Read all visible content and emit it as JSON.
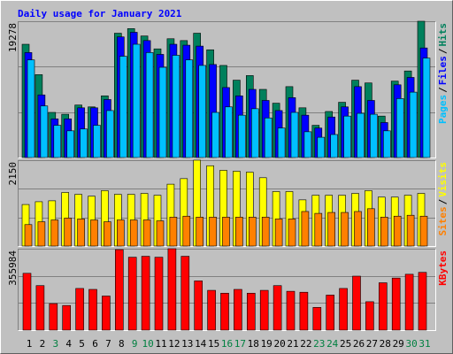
{
  "chart_data": [
    {
      "type": "bar",
      "title": "Daily usage for January 2021",
      "ylim": [
        0,
        19278
      ],
      "yticks": [
        19278
      ],
      "grid_values": [
        6426,
        12852
      ],
      "separator": "/",
      "series": [
        {
          "name": "Hits",
          "color": "#00805c",
          "values": [
            16021,
            11723,
            6383,
            6122,
            7425,
            7164,
            8727,
            17585,
            18236,
            17194,
            15370,
            16803,
            16543,
            17585,
            15240,
            13026,
            10942,
            11593,
            9639,
            7685,
            10030,
            7034,
            4559,
            6513,
            7816,
            10942,
            10551,
            5862,
            10811,
            12244,
            19278
          ]
        },
        {
          "name": "Files",
          "color": "#0000ff",
          "values": [
            14849,
            8858,
            5471,
            5471,
            7034,
            7034,
            8206,
            17064,
            17715,
            16543,
            14589,
            16021,
            15891,
            15761,
            13156,
            9900,
            8727,
            9639,
            8076,
            6643,
            8467,
            5992,
            4168,
            5731,
            7164,
            10030,
            8076,
            4950,
            10290,
            11332,
            15500
          ]
        },
        {
          "name": "Pages",
          "color": "#00c0ff",
          "values": [
            13807,
            7294,
            4559,
            3777,
            4038,
            4559,
            6643,
            14328,
            16021,
            14849,
            12765,
            14458,
            13807,
            13026,
            6383,
            7164,
            5992,
            6903,
            5601,
            4168,
            6383,
            3647,
            2866,
            3256,
            5862,
            6252,
            6122,
            3777,
            8336,
            9248,
            14068
          ]
        }
      ]
    },
    {
      "type": "bar",
      "ylim": [
        0,
        2150
      ],
      "yticks": [
        2150
      ],
      "grid_values": [
        717,
        1433
      ],
      "separator": "/",
      "series": [
        {
          "name": "Visits",
          "color": "#ffff00",
          "values": [
            1040,
            1110,
            1133,
            1341,
            1295,
            1248,
            1387,
            1295,
            1295,
            1318,
            1272,
            1549,
            1688,
            2150,
            2011,
            1896,
            1873,
            1850,
            1711,
            1364,
            1364,
            1156,
            1272,
            1272,
            1272,
            1318,
            1387,
            1225,
            1225,
            1272,
            1318
          ]
        },
        {
          "name": "Sites",
          "color": "#ff8000",
          "values": [
            537,
            608,
            654,
            701,
            678,
            654,
            608,
            654,
            654,
            654,
            631,
            724,
            748,
            724,
            724,
            724,
            724,
            724,
            724,
            678,
            678,
            865,
            818,
            841,
            841,
            865,
            935,
            724,
            748,
            771,
            748
          ]
        }
      ]
    },
    {
      "type": "bar",
      "ylim": [
        0,
        355984
      ],
      "yticks": [
        355984
      ],
      "grid_values": [
        118661,
        237323
      ],
      "categories": [
        "1",
        "2",
        "3",
        "4",
        "5",
        "6",
        "7",
        "8",
        "9",
        "10",
        "11",
        "12",
        "13",
        "14",
        "15",
        "16",
        "17",
        "18",
        "19",
        "20",
        "21",
        "22",
        "23",
        "24",
        "25",
        "26",
        "27",
        "28",
        "29",
        "30",
        "31"
      ],
      "label_colors": [
        "#000",
        "#000",
        "#008040",
        "#000",
        "#000",
        "#000",
        "#000",
        "#000",
        "#008040",
        "#008040",
        "#000",
        "#000",
        "#000",
        "#000",
        "#000",
        "#008040",
        "#008040",
        "#000",
        "#000",
        "#000",
        "#000",
        "#000",
        "#008040",
        "#008040",
        "#000",
        "#000",
        "#000",
        "#000",
        "#000",
        "#008040",
        "#008040"
      ],
      "series": [
        {
          "name": "KBytes",
          "color": "#ff0000",
          "values": [
            248361,
            194550,
            115901,
            107622,
            182132,
            177993,
            149016,
            351844,
            318729,
            322868,
            318729,
            355984,
            322868,
            215246,
            173853,
            161435,
            177993,
            161435,
            173853,
            194550,
            169713,
            165574,
            99344,
            153155,
            182132,
            235943,
            124180,
            206968,
            227665,
            244221,
            252500
          ]
        }
      ]
    }
  ]
}
